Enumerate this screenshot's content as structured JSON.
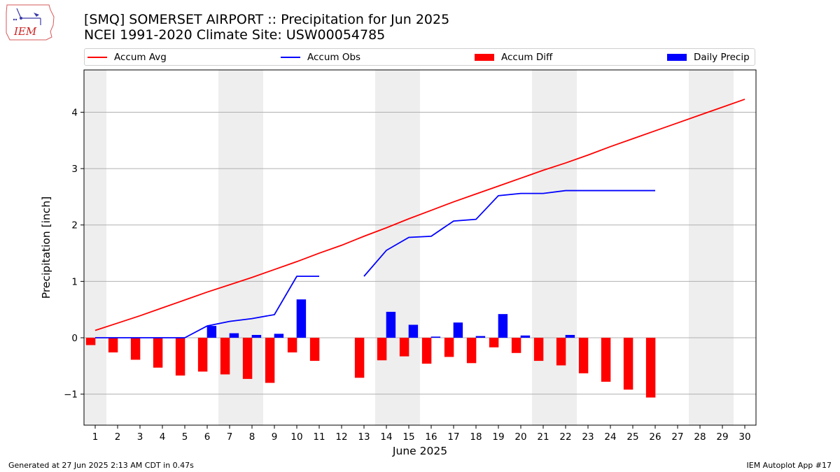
{
  "header": {
    "title": "[SMQ] SOMERSET AIRPORT :: Precipitation for Jun 2025",
    "subtitle": "NCEI 1991-2020 Climate Site: USW00054785"
  },
  "logo": {
    "text": "IEM",
    "icon": "iowa-state-outline-logo"
  },
  "legend": {
    "accum_avg": "Accum Avg",
    "accum_obs": "Accum Obs",
    "accum_diff": "Accum Diff",
    "daily_precip": "Daily Precip"
  },
  "footer": {
    "left": "Generated at 27 Jun 2025 2:13 AM CDT in 0.47s",
    "right": "IEM Autoplot App #17"
  },
  "colors": {
    "avg": "#ff0000",
    "obs": "#0000ff",
    "diff": "#ff0000",
    "daily": "#0000ff",
    "shade": "#eeeeee",
    "grid": "#b0b0b0"
  },
  "chart_data": {
    "type": "bar",
    "xlabel": "June 2025",
    "ylabel": "Precipitation [inch]",
    "x": [
      1,
      2,
      3,
      4,
      5,
      6,
      7,
      8,
      9,
      10,
      11,
      12,
      13,
      14,
      15,
      16,
      17,
      18,
      19,
      20,
      21,
      22,
      23,
      24,
      25,
      26,
      27,
      28,
      29,
      30
    ],
    "xlim": [
      0.5,
      30.5
    ],
    "ylim": [
      -1.55,
      4.75
    ],
    "yticks": [
      -1,
      0,
      1,
      2,
      3,
      4
    ],
    "weekend_shading": [
      [
        0.5,
        1.5
      ],
      [
        6.5,
        8.5
      ],
      [
        13.5,
        15.5
      ],
      [
        20.5,
        22.5
      ],
      [
        27.5,
        29.5
      ]
    ],
    "grid": "horizontal",
    "legend_position": "top",
    "series": [
      {
        "name": "Accum Avg",
        "kind": "line",
        "x": [
          1,
          2,
          3,
          4,
          5,
          6,
          7,
          8,
          9,
          10,
          11,
          12,
          13,
          14,
          15,
          16,
          17,
          18,
          19,
          20,
          21,
          22,
          23,
          24,
          25,
          26,
          27,
          28,
          29,
          30
        ],
        "values": [
          0.13,
          0.26,
          0.39,
          0.53,
          0.67,
          0.81,
          0.94,
          1.07,
          1.21,
          1.35,
          1.5,
          1.64,
          1.8,
          1.95,
          2.11,
          2.26,
          2.41,
          2.55,
          2.69,
          2.83,
          2.97,
          3.1,
          3.24,
          3.39,
          3.53,
          3.67,
          3.81,
          3.95,
          4.09,
          4.23
        ]
      },
      {
        "name": "Accum Obs",
        "kind": "line",
        "segments": [
          {
            "x": [
              1,
              2,
              3,
              4,
              5,
              6,
              7,
              8,
              9,
              10,
              11
            ],
            "values": [
              0.0,
              0.0,
              0.0,
              0.0,
              0.0,
              0.21,
              0.29,
              0.34,
              0.41,
              1.09,
              1.09
            ]
          },
          {
            "x": [
              13,
              14,
              15,
              16,
              17,
              18,
              19,
              20,
              21,
              22,
              23,
              24,
              25,
              26
            ],
            "values": [
              1.09,
              1.55,
              1.78,
              1.8,
              2.07,
              2.1,
              2.52,
              2.56,
              2.56,
              2.61,
              2.61,
              2.61,
              2.61,
              2.61
            ]
          }
        ]
      },
      {
        "name": "Accum Diff",
        "kind": "bar",
        "x": [
          1,
          2,
          3,
          4,
          5,
          6,
          7,
          8,
          9,
          10,
          11,
          13,
          14,
          15,
          16,
          17,
          18,
          19,
          20,
          21,
          22,
          23,
          24,
          25,
          26
        ],
        "values": [
          -0.13,
          -0.26,
          -0.39,
          -0.53,
          -0.67,
          -0.6,
          -0.65,
          -0.73,
          -0.8,
          -0.26,
          -0.41,
          -0.71,
          -0.4,
          -0.33,
          -0.46,
          -0.34,
          -0.45,
          -0.17,
          -0.27,
          -0.41,
          -0.49,
          -0.63,
          -0.78,
          -0.92,
          -1.06
        ]
      },
      {
        "name": "Daily Precip",
        "kind": "bar",
        "x": [
          6,
          7,
          8,
          9,
          10,
          14,
          15,
          16,
          17,
          18,
          19,
          20,
          22
        ],
        "values": [
          0.21,
          0.08,
          0.05,
          0.07,
          0.68,
          0.46,
          0.23,
          0.02,
          0.27,
          0.03,
          0.42,
          0.04,
          0.05
        ]
      }
    ]
  }
}
